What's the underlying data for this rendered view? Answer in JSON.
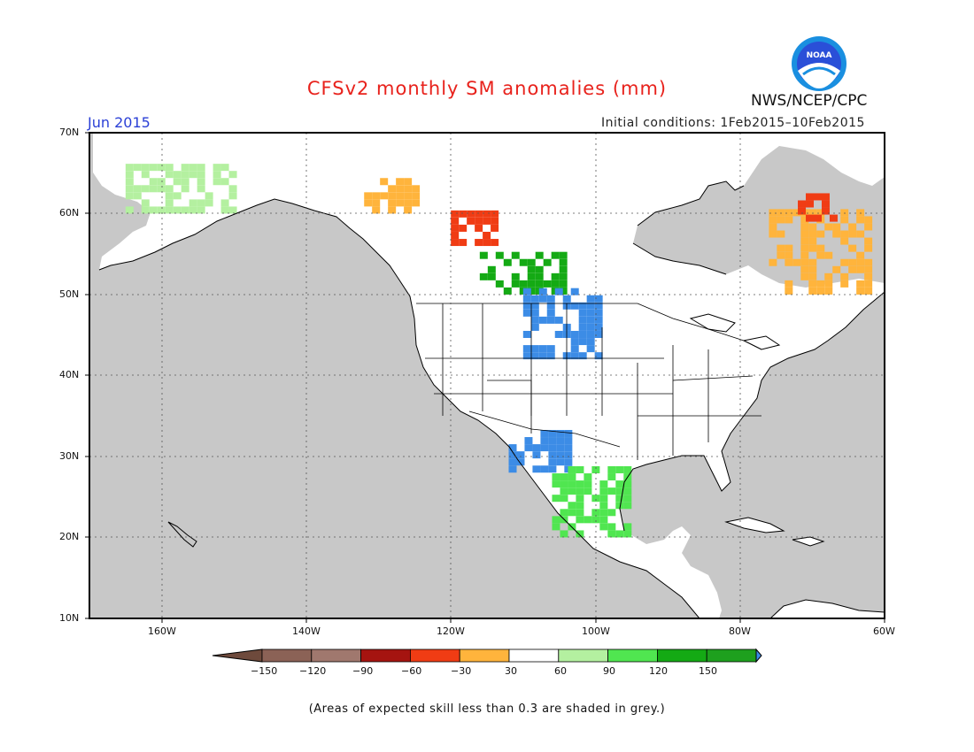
{
  "title": "CFSv2 monthly SM anomalies (mm)",
  "month": "Jun 2015",
  "initial_conditions": "Initial conditions: 1Feb2015–10Feb2015",
  "agency": "NWS/NCEP/CPC",
  "logo_text": "NOAA",
  "footnote": "(Areas of expected skill less than 0.3 are shaded in grey.)",
  "colors": {
    "grey": "#c8c8c8",
    "land": "#ffffff",
    "n150": "#8b6256",
    "n120": "#a0786e",
    "n90": "#a51410",
    "n60": "#f03c14",
    "n30": "#ffb43c",
    "p30": "#b4f0a0",
    "p60": "#50e650",
    "p90": "#14aa14",
    "p120": "#1ea01e",
    "p150": "#3c8ce6"
  },
  "lat_labels": [
    "70N",
    "60N",
    "50N",
    "40N",
    "30N",
    "20N",
    "10N"
  ],
  "lon_labels": [
    "160W",
    "140W",
    "120W",
    "100W",
    "80W",
    "60W"
  ],
  "colorbar": {
    "labels": [
      "−150",
      "−120",
      "−90",
      "−60",
      "−30",
      "30",
      "60",
      "90",
      "120",
      "150"
    ],
    "colors": [
      "#8b6256",
      "#a0786e",
      "#a51410",
      "#f03c14",
      "#ffb43c",
      "#ffffff",
      "#b4f0a0",
      "#50e650",
      "#14aa14",
      "#1ea01e",
      "#3c8ce6"
    ],
    "end_low": "#6e4a3c",
    "end_high": "#3c8ce6"
  },
  "regions": [
    {
      "name": "alaska-west",
      "cls": "p30",
      "lon": [
        -165,
        -150
      ],
      "lat": [
        60,
        66
      ]
    },
    {
      "name": "yukon-orange",
      "cls": "n30",
      "lon": [
        -132,
        -125
      ],
      "lat": [
        60,
        64
      ]
    },
    {
      "name": "bc-red",
      "cls": "n60",
      "lon": [
        -120,
        -114
      ],
      "lat": [
        56,
        60
      ]
    },
    {
      "name": "canada-green",
      "cls": "p90",
      "lon": [
        -116,
        -104
      ],
      "lat": [
        50,
        55
      ]
    },
    {
      "name": "plains-blue",
      "cls": "p150",
      "lon": [
        -110,
        -100
      ],
      "lat": [
        42,
        50
      ]
    },
    {
      "name": "texas-blue",
      "cls": "p150",
      "lon": [
        -112,
        -104
      ],
      "lat": [
        28,
        33
      ]
    },
    {
      "name": "mexico-green",
      "cls": "p60",
      "lon": [
        -106,
        -96
      ],
      "lat": [
        20,
        28
      ]
    },
    {
      "name": "quebec-orange",
      "cls": "n30",
      "lon": [
        -76,
        -62
      ],
      "lat": [
        50,
        60
      ]
    },
    {
      "name": "quebec-red",
      "cls": "n60",
      "lon": [
        -72,
        -67
      ],
      "lat": [
        59,
        62
      ]
    }
  ]
}
